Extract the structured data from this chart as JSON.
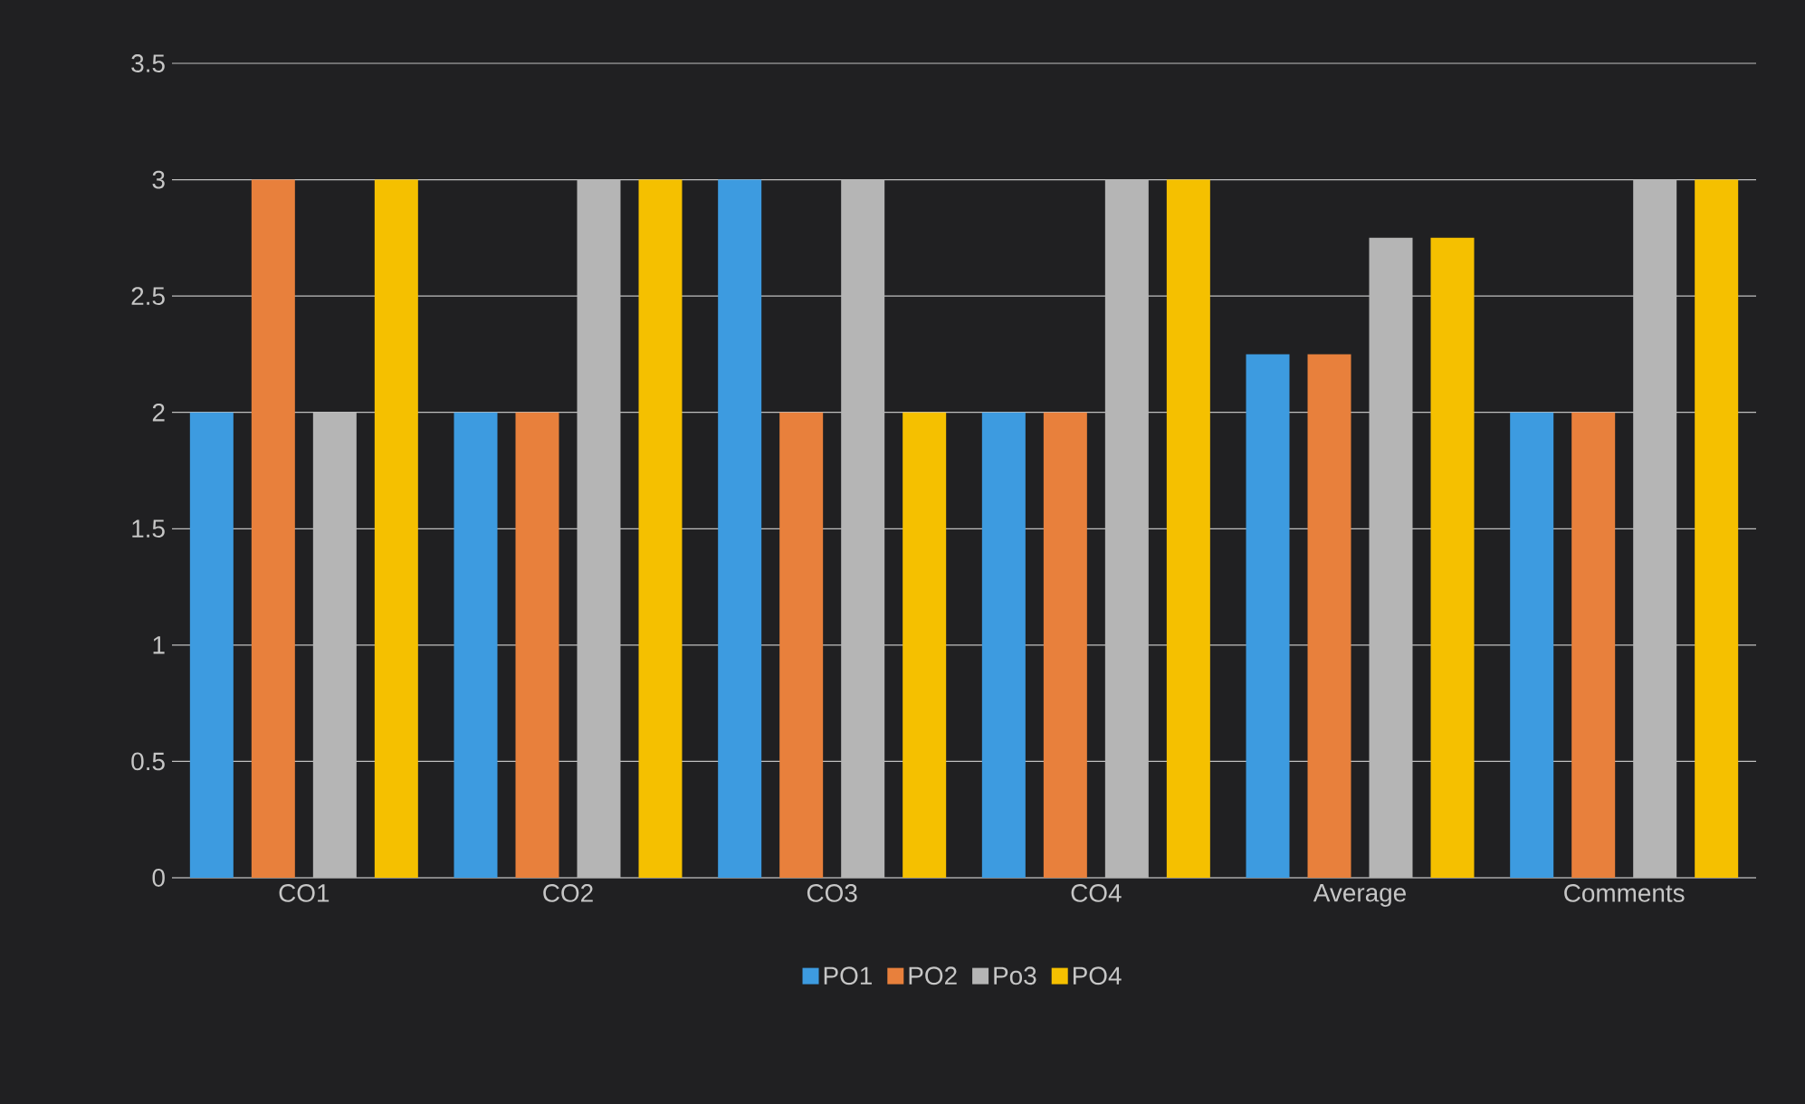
{
  "chart_data": {
    "type": "bar",
    "categories": [
      "CO1",
      "CO2",
      "CO3",
      "CO4",
      "Average",
      "Comments"
    ],
    "series": [
      {
        "name": "PO1",
        "color": "#3d9be0",
        "values": [
          2,
          2,
          3,
          2,
          2.25,
          2
        ]
      },
      {
        "name": "PO2",
        "color": "#e8803c",
        "values": [
          3,
          2,
          2,
          2,
          2.25,
          2
        ]
      },
      {
        "name": "Po3",
        "color": "#b5b5b5",
        "values": [
          2,
          3,
          3,
          3,
          2.75,
          3
        ]
      },
      {
        "name": "PO4",
        "color": "#f5c000",
        "values": [
          3,
          3,
          2,
          3,
          2.75,
          3
        ]
      }
    ],
    "ylim": [
      0,
      3.5
    ],
    "yticks": [
      0,
      0.5,
      1,
      1.5,
      2,
      2.5,
      3,
      3.5
    ],
    "grid": "y",
    "legend": "bottom"
  }
}
